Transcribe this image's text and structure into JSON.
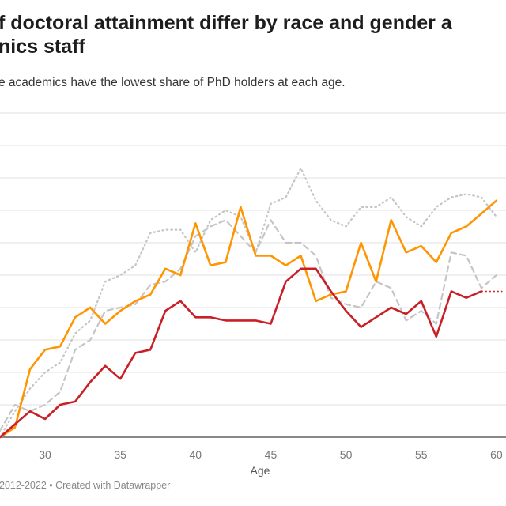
{
  "title_line1": "f doctoral attainment differ by race and gender a",
  "title_line2": "nics staff",
  "subtitle": "e academics have the lowest share of PhD holders at each age.",
  "footer": "2012-2022 • Created with Datawrapper",
  "chart_data": {
    "type": "line",
    "xlabel": "Age",
    "xticks": [
      30,
      35,
      40,
      45,
      50,
      55,
      60
    ],
    "xlim": [
      27,
      60.5
    ],
    "ylim": [
      0,
      100
    ],
    "grid": true,
    "x": [
      27,
      28,
      29,
      30,
      31,
      32,
      33,
      34,
      35,
      36,
      37,
      38,
      39,
      40,
      41,
      42,
      43,
      44,
      45,
      46,
      47,
      48,
      49,
      50,
      51,
      52,
      53,
      54,
      55,
      56,
      57,
      58,
      59,
      60
    ],
    "series": [
      {
        "color": "#c5c5c5",
        "style": "dotted",
        "values": [
          0,
          8,
          15,
          20,
          23,
          32,
          36,
          48,
          50,
          53,
          63,
          64,
          64,
          57,
          67,
          70,
          68,
          57,
          72,
          74,
          83,
          73,
          67,
          65,
          71,
          71,
          74,
          68,
          65,
          71,
          74,
          75,
          74,
          68
        ]
      },
      {
        "color": "#c5c5c5",
        "style": "dashed",
        "values": [
          2,
          10,
          8,
          10,
          14,
          27,
          30,
          39,
          40,
          41,
          47,
          48,
          52,
          62,
          65,
          67,
          62,
          57,
          67,
          60,
          60,
          56,
          43,
          41,
          40,
          48,
          46,
          36,
          39,
          35,
          57,
          56,
          46,
          50
        ]
      },
      {
        "color": "#ff9500",
        "style": "solid",
        "values": [
          0,
          3,
          21,
          27,
          28,
          37,
          40,
          35,
          39,
          42,
          44,
          52,
          50,
          66,
          53,
          54,
          71,
          56,
          56,
          53,
          56,
          42,
          44,
          45,
          60,
          48,
          67,
          57,
          59,
          54,
          63,
          65,
          69,
          73
        ]
      },
      {
        "color": "#c91f26",
        "style": "solid",
        "values": [
          0,
          4,
          8,
          5.6,
          10,
          11,
          17,
          22,
          18,
          26,
          27,
          39,
          42,
          37,
          37,
          36,
          36,
          36,
          35,
          48,
          52,
          52,
          45,
          39,
          34,
          37,
          40,
          38,
          42,
          31,
          45,
          43,
          45,
          null
        ],
        "projection": {
          "x": [
            59,
            60.4
          ],
          "values": [
            45,
            45
          ]
        }
      }
    ]
  }
}
